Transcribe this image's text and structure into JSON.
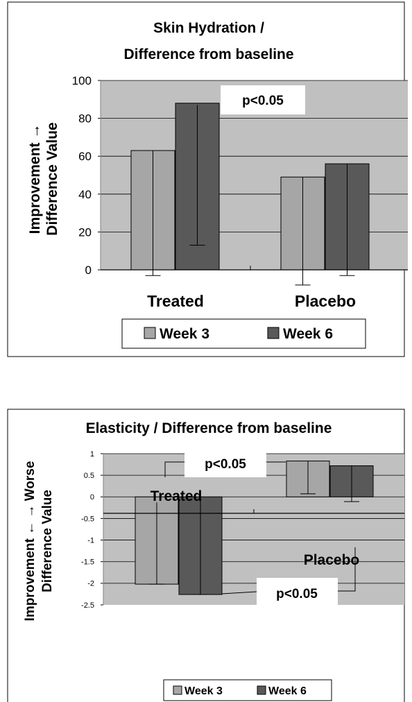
{
  "chart_data": [
    {
      "type": "bar",
      "title_lines": [
        "Skin Hydration /",
        "Difference from baseline"
      ],
      "ylabel_lines": [
        "Improvement →",
        "Difference Value"
      ],
      "ylim": [
        0,
        100
      ],
      "yticks": [
        "0",
        "20",
        "40",
        "60",
        "80",
        "100"
      ],
      "categories": [
        "Treated",
        "Placebo"
      ],
      "series": [
        {
          "name": "Week 3",
          "color": "#a6a6a6",
          "values": [
            63,
            49
          ],
          "error_low": [
            -3,
            -8
          ],
          "error_high": [
            63,
            49
          ]
        },
        {
          "name": "Week 6",
          "color": "#595959",
          "values": [
            88,
            56
          ],
          "error_low": [
            13,
            -3
          ],
          "error_high": [
            87,
            56
          ]
        }
      ],
      "annotations": [
        "p<0.05"
      ],
      "legend_position": "bottom",
      "grid": true,
      "plot_background": "#c0c0c0"
    },
    {
      "type": "bar",
      "title": "Elasticity / Difference from baseline",
      "ylabel_lines": [
        "Improvement ← → Worse",
        "Difference Value"
      ],
      "ylim": [
        -2.5,
        1
      ],
      "yticks": [
        "1",
        "0.5",
        "0",
        "-0.5",
        "-1",
        "-1.5",
        "-2",
        "-2.5"
      ],
      "categories": [
        "Treated",
        "Placebo"
      ],
      "series": [
        {
          "name": "Week 3",
          "color": "#a6a6a6",
          "values": [
            -2.02,
            0.83
          ],
          "error_low": [
            -2.02,
            0.07
          ],
          "error_high": [
            -0.13,
            0.83
          ]
        },
        {
          "name": "Week 6",
          "color": "#595959",
          "values": [
            -2.26,
            0.72
          ],
          "error_low": [
            -2.26,
            -0.11
          ],
          "error_high": [
            -0.09,
            0.73
          ]
        }
      ],
      "annotations": [
        "p<0.05",
        "p<0.05"
      ],
      "legend_position": "bottom",
      "grid": true,
      "plot_background": "#c0c0c0"
    }
  ]
}
